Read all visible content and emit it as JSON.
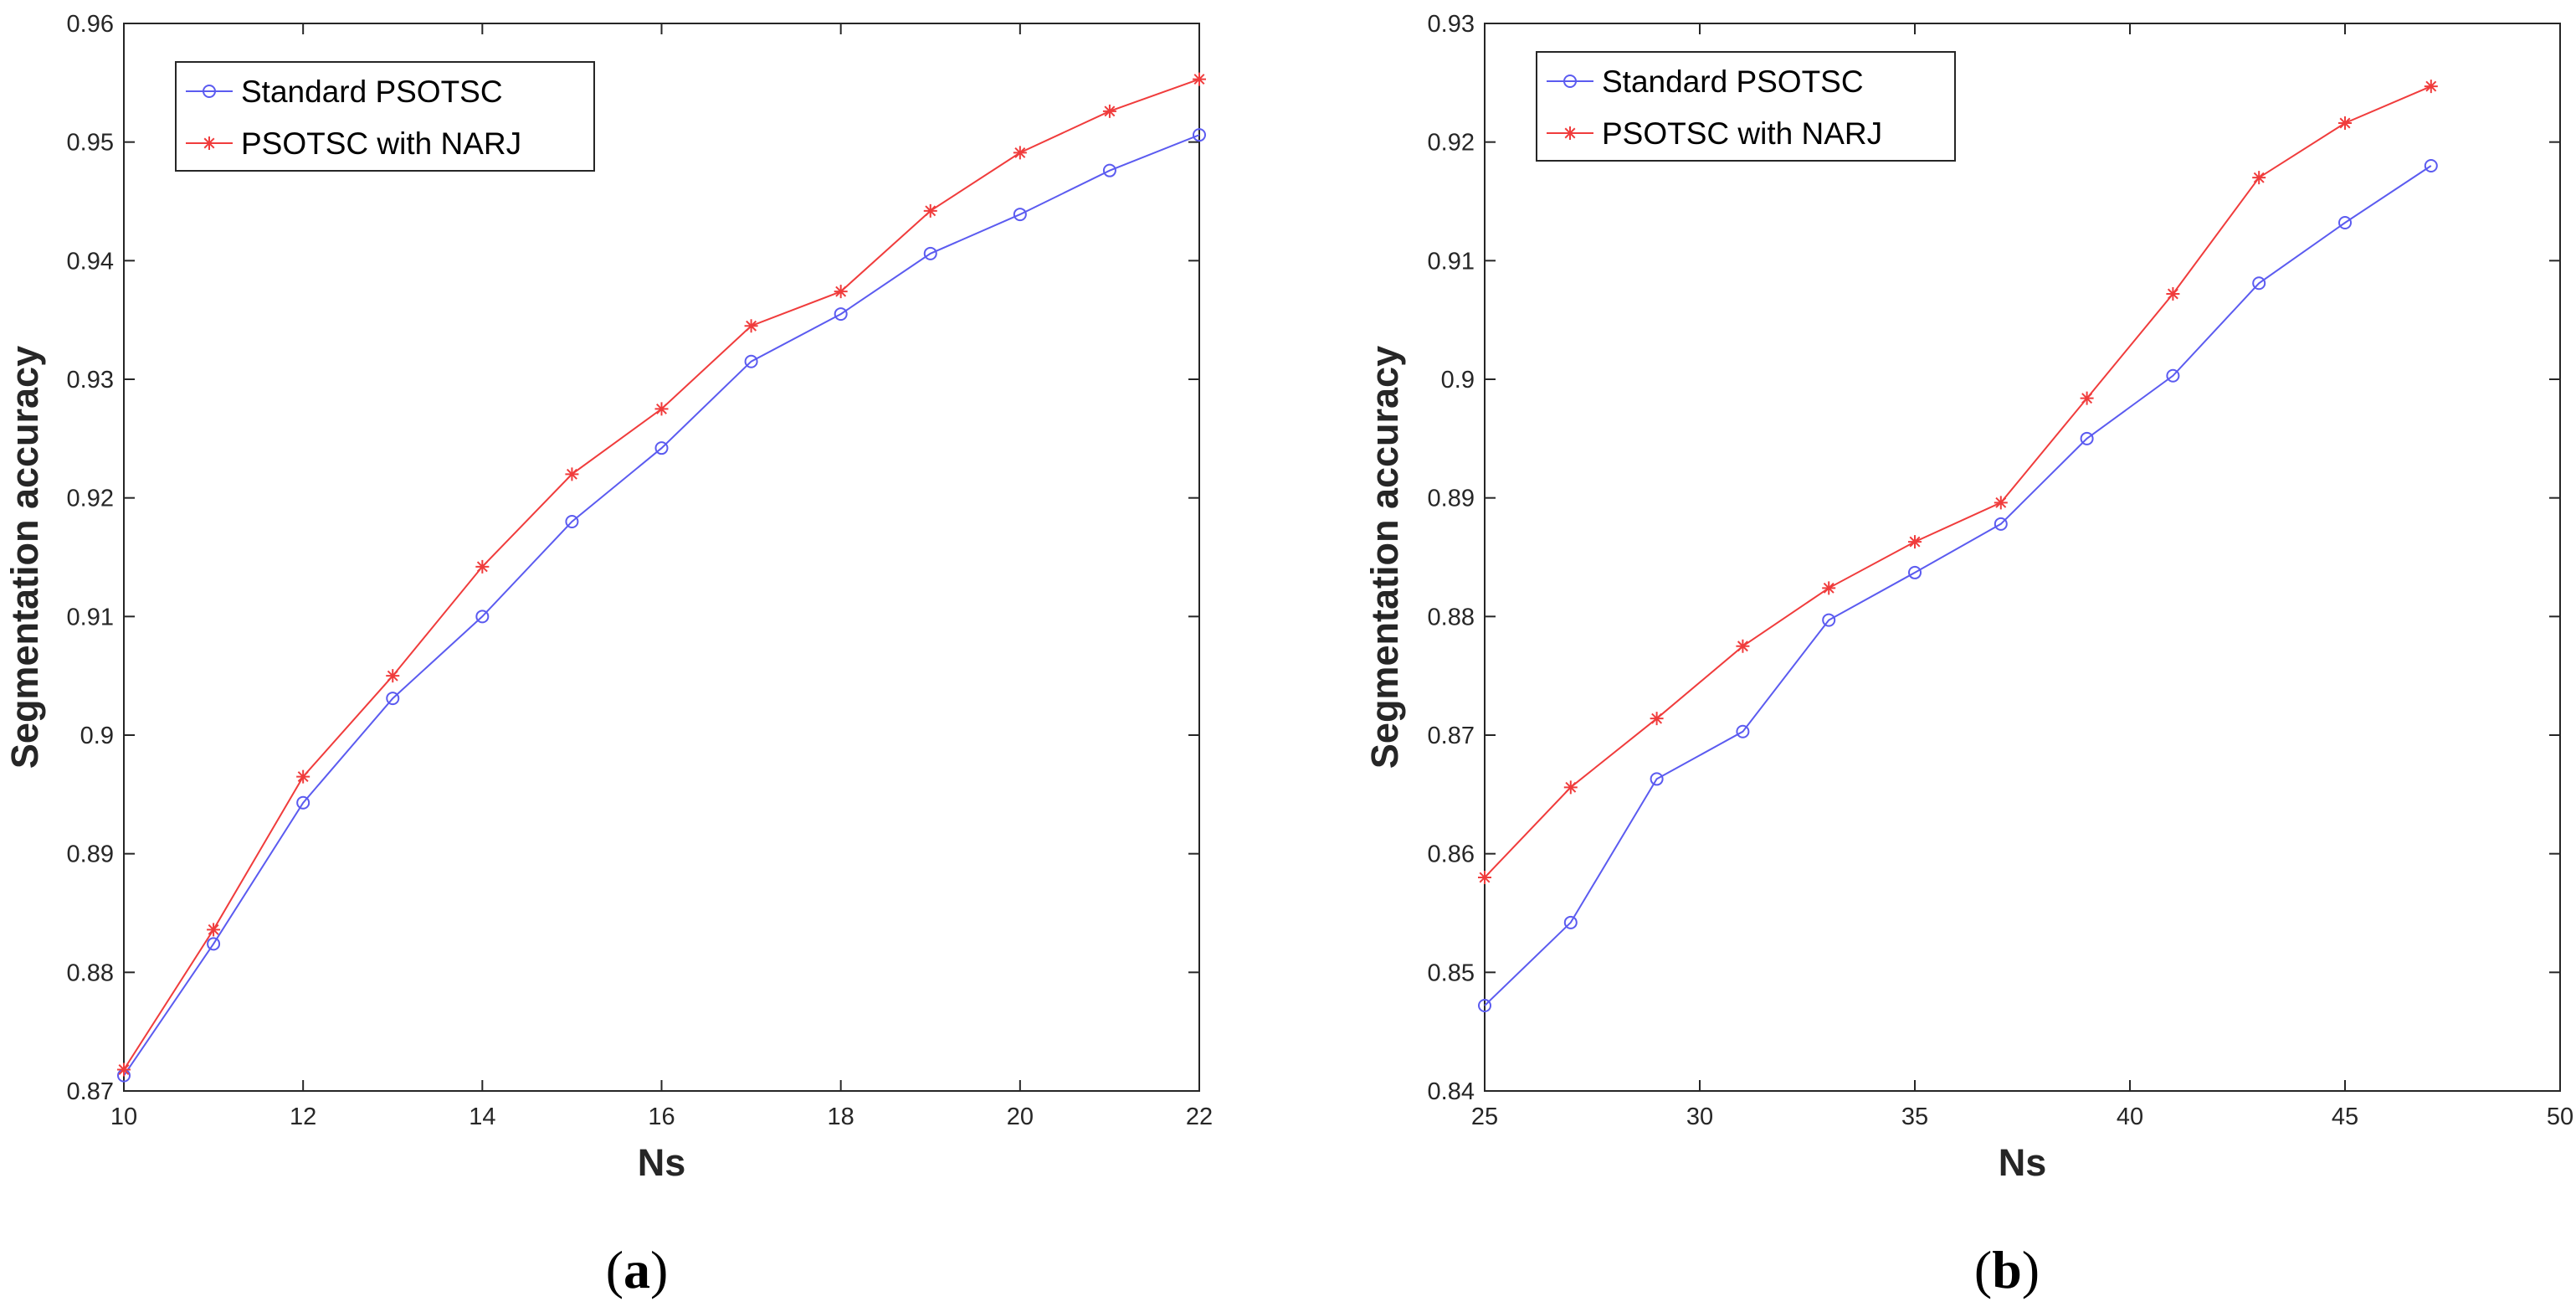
{
  "colors": {
    "standard": "#5b5bf0",
    "narj": "#f03c3c",
    "axis": "#262626"
  },
  "chart_data": [
    {
      "type": "line",
      "panel_label": "a",
      "xlabel": "Ns",
      "ylabel": "Segmentation accuracy",
      "xlim": [
        10,
        22
      ],
      "ylim": [
        0.87,
        0.96
      ],
      "xticks": [
        "10",
        "12",
        "14",
        "16",
        "18",
        "20",
        "22"
      ],
      "yticks": [
        "0.87",
        "0.88",
        "0.89",
        "0.9",
        "0.91",
        "0.92",
        "0.93",
        "0.94",
        "0.95",
        "0.96"
      ],
      "legend_position": "top-left",
      "x": [
        10,
        11,
        12,
        13,
        14,
        15,
        16,
        17,
        18,
        19,
        20,
        21,
        22
      ],
      "series": [
        {
          "name": "Standard PSOTSC",
          "marker": "circle",
          "values": [
            0.8713,
            0.8824,
            0.8943,
            0.9031,
            0.91,
            0.918,
            0.9242,
            0.9315,
            0.9355,
            0.9406,
            0.9439,
            0.9476,
            0.9506
          ]
        },
        {
          "name": "PSOTSC with NARJ",
          "marker": "star",
          "values": [
            0.8718,
            0.8836,
            0.8965,
            0.905,
            0.9142,
            0.922,
            0.9275,
            0.9345,
            0.9374,
            0.9442,
            0.9491,
            0.9526,
            0.9553
          ]
        }
      ]
    },
    {
      "type": "line",
      "panel_label": "b",
      "xlabel": "Ns",
      "ylabel": "Segmentation accuracy",
      "xlim": [
        25,
        50
      ],
      "ylim": [
        0.84,
        0.93
      ],
      "xticks": [
        "25",
        "30",
        "35",
        "40",
        "45",
        "50"
      ],
      "yticks": [
        "0.84",
        "0.85",
        "0.86",
        "0.87",
        "0.88",
        "0.89",
        "0.9",
        "0.91",
        "0.92",
        "0.93"
      ],
      "legend_position": "top-left",
      "x": [
        25,
        27,
        29,
        31,
        33,
        35,
        37,
        39,
        41,
        43,
        45,
        47
      ],
      "series": [
        {
          "name": "Standard PSOTSC",
          "marker": "circle",
          "values": [
            0.8472,
            0.8542,
            0.8663,
            0.8703,
            0.8797,
            0.8837,
            0.8878,
            0.895,
            0.9003,
            0.9081,
            0.9132,
            0.918
          ]
        },
        {
          "name": "PSOTSC with NARJ",
          "marker": "star",
          "values": [
            0.858,
            0.8656,
            0.8714,
            0.8775,
            0.8824,
            0.8863,
            0.8896,
            0.8984,
            0.9072,
            0.917,
            0.9216,
            0.9247
          ]
        }
      ]
    }
  ]
}
